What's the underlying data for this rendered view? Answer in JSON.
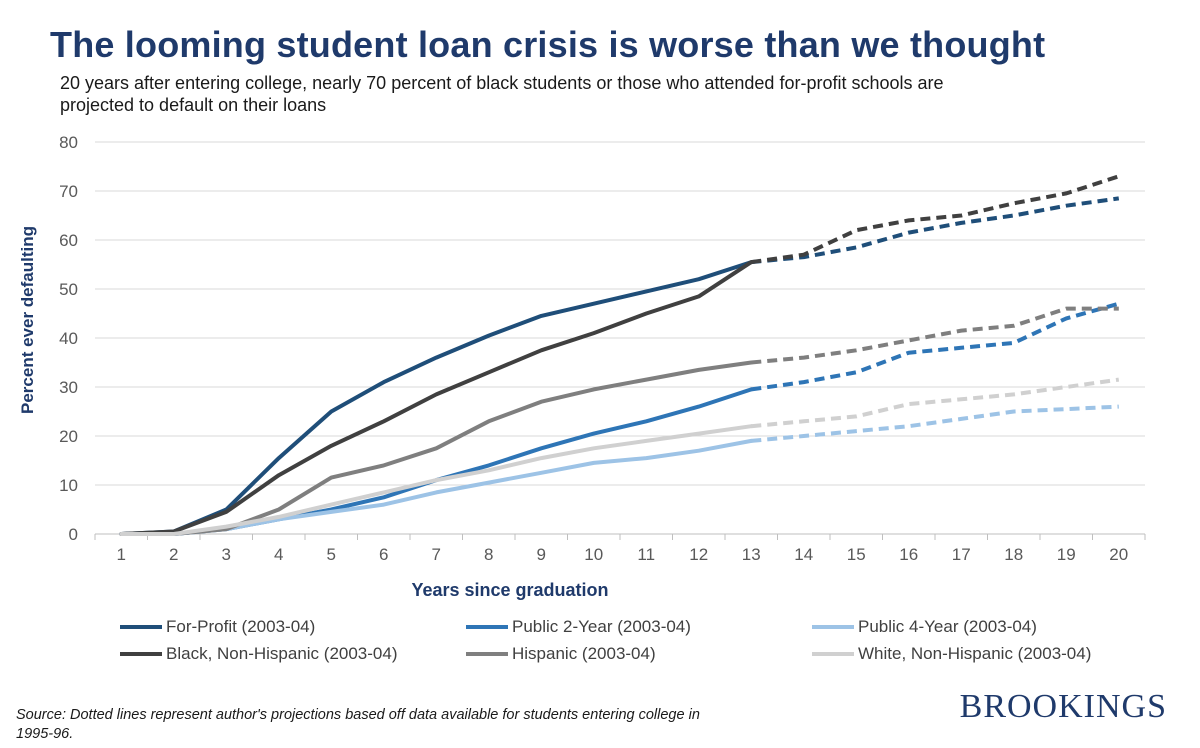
{
  "header": {
    "title": "The looming student loan crisis is worse than we thought",
    "subtitle": "20 years after entering college, nearly 70 percent of black students or those who attended for-profit schools are projected to default on their loans"
  },
  "footer": {
    "source": "Source: Dotted lines represent author's projections based off data available for students entering college in 1995-96.",
    "logo": "BROOKINGS"
  },
  "chart_data": {
    "type": "line",
    "xlabel": "Years since graduation",
    "ylabel": "Percent ever defaulting",
    "ylim": [
      0,
      80
    ],
    "yticks": [
      0,
      10,
      20,
      30,
      40,
      50,
      60,
      70,
      80
    ],
    "x": [
      1,
      2,
      3,
      4,
      5,
      6,
      7,
      8,
      9,
      10,
      11,
      12,
      13,
      14,
      15,
      16,
      17,
      18,
      19,
      20
    ],
    "projection_start_x": 13,
    "grid": "horizontal",
    "legend_position": "bottom",
    "series": [
      {
        "name": "For-Profit (2003-04)",
        "color": "#1f4e79",
        "values": [
          0,
          0.5,
          5,
          15.5,
          25,
          31,
          36,
          40.5,
          44.5,
          47,
          49.5,
          52,
          55.5,
          56.5,
          58.5,
          61.5,
          63.5,
          65,
          67,
          68.5
        ]
      },
      {
        "name": "Public 2-Year (2003-04)",
        "color": "#2e75b6",
        "values": [
          0,
          0,
          1,
          3,
          5,
          7.5,
          11,
          14,
          17.5,
          20.5,
          23,
          26,
          29.5,
          31,
          33,
          37,
          38,
          39,
          44,
          47
        ]
      },
      {
        "name": "Public 4-Year (2003-04)",
        "color": "#9dc3e6",
        "values": [
          0,
          0,
          1,
          3,
          4.5,
          6,
          8.5,
          10.5,
          12.5,
          14.5,
          15.5,
          17,
          19,
          20,
          21,
          22,
          23.5,
          25,
          25.5,
          26
        ]
      },
      {
        "name": "Black, Non-Hispanic (2003-04)",
        "color": "#404040",
        "values": [
          0,
          0.5,
          4.5,
          12,
          18,
          23,
          28.5,
          33,
          37.5,
          41,
          45,
          48.5,
          55.5,
          57,
          62,
          64,
          65,
          67.5,
          69.5,
          73
        ]
      },
      {
        "name": "Hispanic (2003-04)",
        "color": "#7f7f7f",
        "values": [
          0,
          0,
          1,
          5,
          11.5,
          14,
          17.5,
          23,
          27,
          29.5,
          31.5,
          33.5,
          35,
          36,
          37.5,
          39.5,
          41.5,
          42.5,
          46,
          46
        ]
      },
      {
        "name": "White, Non-Hispanic (2003-04)",
        "color": "#d0d0d0",
        "values": [
          0,
          0,
          1.5,
          3.5,
          6,
          8.5,
          11,
          13,
          15.5,
          17.5,
          19,
          20.5,
          22,
          23,
          24,
          26.5,
          27.5,
          28.5,
          30,
          31.5
        ]
      }
    ]
  }
}
